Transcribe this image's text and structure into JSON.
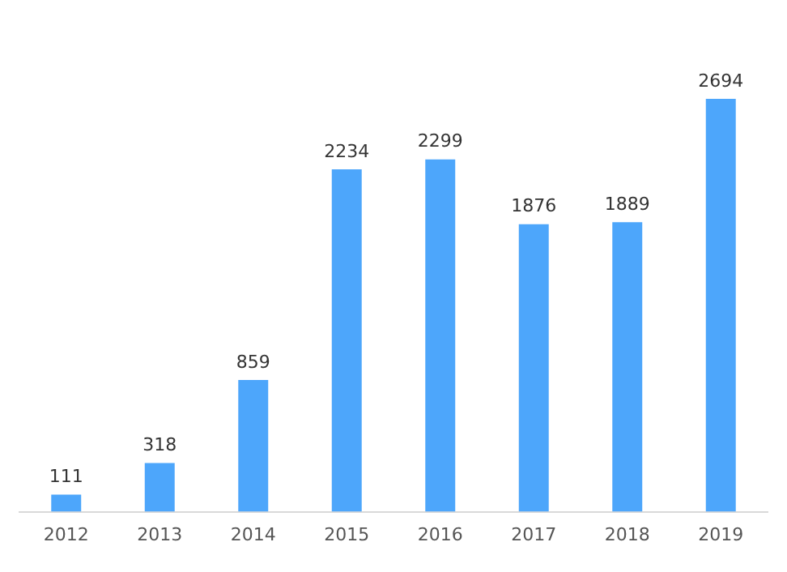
{
  "chart_data": {
    "type": "bar",
    "categories": [
      "2012",
      "2013",
      "2014",
      "2015",
      "2016",
      "2017",
      "2018",
      "2019"
    ],
    "values": [
      111,
      318,
      859,
      2234,
      2299,
      1876,
      1889,
      2694
    ],
    "color": "#4da6fb",
    "data_labels": true,
    "grid": false,
    "legend": false
  }
}
